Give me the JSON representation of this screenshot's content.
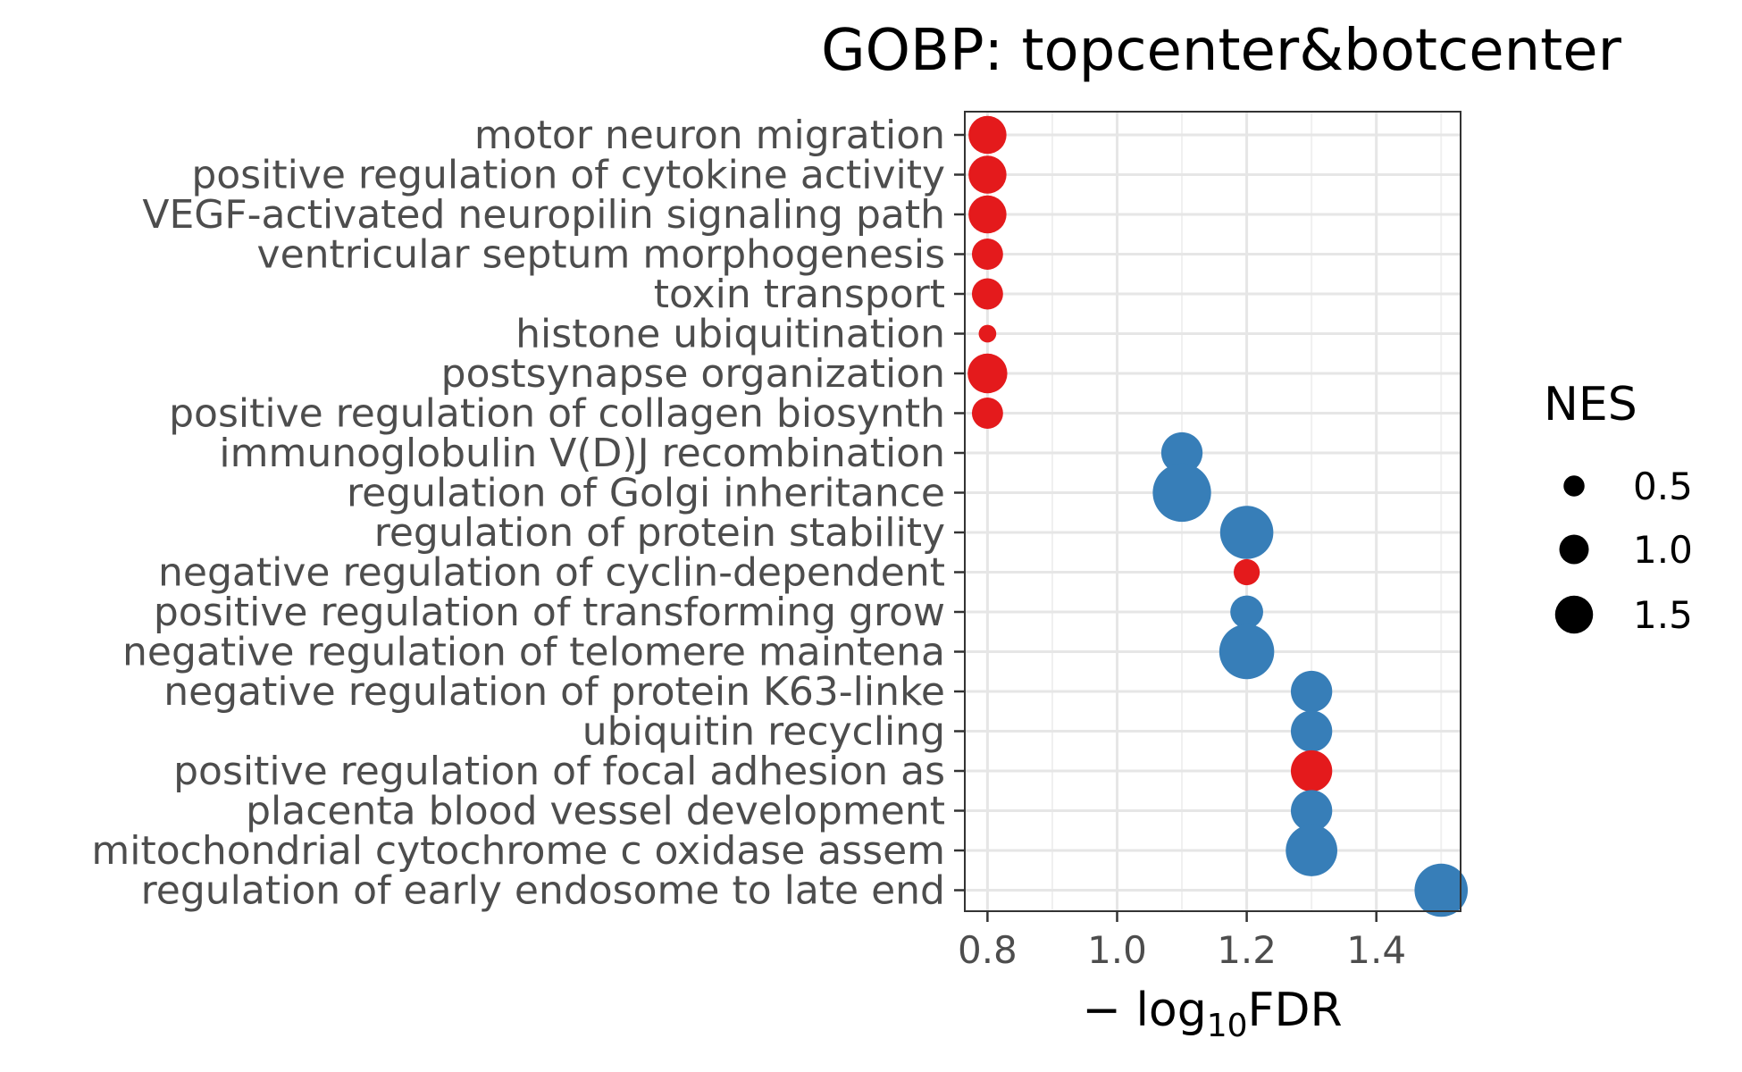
{
  "chart_data": {
    "type": "scatter",
    "title": "GOBP: topcenter&botcenter",
    "xlabel_prefix": "− log",
    "xlabel_sub": "10",
    "xlabel_suffix": "FDR",
    "ylabel": "",
    "xlim": [
      0.765,
      1.53
    ],
    "x_ticks": [
      0.8,
      1.0,
      1.2,
      1.4
    ],
    "x_tick_labels": [
      "0.8",
      "1.0",
      "1.2",
      "1.4"
    ],
    "grid": true,
    "colors": {
      "up": "#e41a1c",
      "down": "#377eb8"
    },
    "size_legend": {
      "title": "NES",
      "placement": "right",
      "entries": [
        {
          "label": "0.5",
          "value": 0.5
        },
        {
          "label": "1.0",
          "value": 1.0
        },
        {
          "label": "1.5",
          "value": 1.5
        }
      ]
    },
    "points": [
      {
        "term": "motor neuron migration",
        "x": 0.8,
        "nes": 1.5,
        "group": "up"
      },
      {
        "term": "positive regulation of cytokine activity",
        "x": 0.8,
        "nes": 1.5,
        "group": "up"
      },
      {
        "term": "VEGF-activated neuropilin signaling path",
        "x": 0.8,
        "nes": 1.5,
        "group": "up"
      },
      {
        "term": "ventricular septum morphogenesis",
        "x": 0.8,
        "nes": 1.1,
        "group": "up"
      },
      {
        "term": "toxin transport",
        "x": 0.8,
        "nes": 1.1,
        "group": "up"
      },
      {
        "term": "histone ubiquitination",
        "x": 0.8,
        "nes": 0.3,
        "group": "up"
      },
      {
        "term": "postsynapse organization",
        "x": 0.8,
        "nes": 1.6,
        "group": "up"
      },
      {
        "term": "positive regulation of collagen biosynth",
        "x": 0.8,
        "nes": 1.1,
        "group": "up"
      },
      {
        "term": "immunoglobulin V(D)J recombination",
        "x": 1.1,
        "nes": 1.7,
        "group": "down"
      },
      {
        "term": "regulation of Golgi inheritance",
        "x": 1.1,
        "nes": 2.7,
        "group": "down"
      },
      {
        "term": "regulation of protein stability",
        "x": 1.2,
        "nes": 2.4,
        "group": "down"
      },
      {
        "term": "negative regulation of cyclin-dependent ",
        "x": 1.2,
        "nes": 0.8,
        "group": "up"
      },
      {
        "term": "positive regulation of transforming grow",
        "x": 1.2,
        "nes": 1.2,
        "group": "down"
      },
      {
        "term": "negative regulation of telomere maintena",
        "x": 1.2,
        "nes": 2.5,
        "group": "down"
      },
      {
        "term": "negative regulation of protein K63-linke",
        "x": 1.3,
        "nes": 1.7,
        "group": "down"
      },
      {
        "term": "ubiquitin recycling",
        "x": 1.3,
        "nes": 1.7,
        "group": "down"
      },
      {
        "term": "positive regulation of focal adhesion as",
        "x": 1.3,
        "nes": 1.7,
        "group": "up"
      },
      {
        "term": "placenta blood vessel development",
        "x": 1.3,
        "nes": 1.7,
        "group": "down"
      },
      {
        "term": "mitochondrial cytochrome c oxidase assem",
        "x": 1.3,
        "nes": 2.3,
        "group": "down"
      },
      {
        "term": "regulation of early endosome to late end",
        "x": 1.5,
        "nes": 2.4,
        "group": "down"
      }
    ]
  }
}
